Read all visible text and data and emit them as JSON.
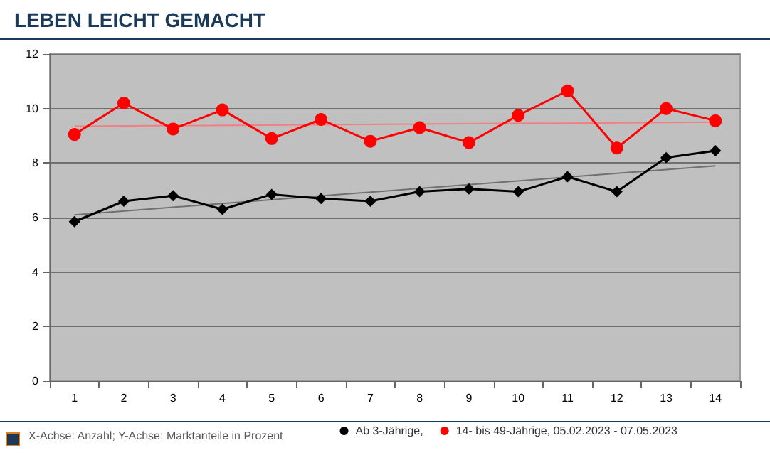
{
  "chart_data": {
    "type": "line",
    "title": "LEBEN LEICHT GEMACHT",
    "annotations": [
      "X-Achse: Anzahl; Y-Achse: Marktanteile in Prozent"
    ],
    "categories": [
      "1",
      "2",
      "3",
      "4",
      "5",
      "6",
      "7",
      "8",
      "9",
      "10",
      "11",
      "12",
      "13",
      "14"
    ],
    "series": [
      {
        "name": "Ab 3-Jährige,",
        "color": "#000000",
        "marker": "diamond",
        "values": [
          5.85,
          6.6,
          6.8,
          6.3,
          6.85,
          6.7,
          6.6,
          6.95,
          7.05,
          6.95,
          7.5,
          6.95,
          8.2,
          8.45
        ]
      },
      {
        "name": "14- bis 49-Jährige, 05.02.2023 - 07.05.2023",
        "color": "#ff0000",
        "marker": "circle",
        "values": [
          9.05,
          10.2,
          9.25,
          9.95,
          8.9,
          9.6,
          8.8,
          9.3,
          8.75,
          9.75,
          10.65,
          8.55,
          10.0,
          9.55
        ]
      },
      {
        "type": "line",
        "color": "#f08080",
        "marker": "none",
        "x": [
          "1",
          "14"
        ],
        "values": [
          9.35,
          9.5
        ]
      },
      {
        "type": "line",
        "color": "#707070",
        "marker": "none",
        "x": [
          "1",
          "14"
        ],
        "values": [
          6.1,
          7.9
        ]
      }
    ],
    "ylim": [
      0,
      12
    ],
    "yticks": [
      0,
      2,
      4,
      6,
      8,
      10,
      12
    ],
    "grid": "y",
    "legend": "bottom right"
  }
}
